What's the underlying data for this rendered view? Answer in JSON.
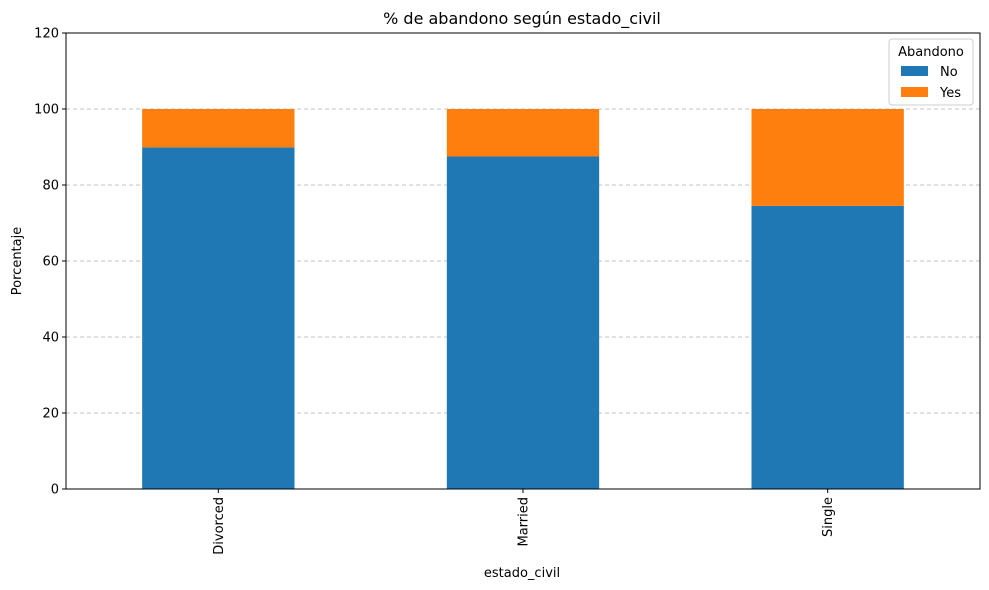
{
  "chart_data": {
    "type": "bar",
    "stacked": true,
    "title": "% de abandono según estado_civil",
    "xlabel": "estado_civil",
    "ylabel": "Porcentaje",
    "categories": [
      "Divorced",
      "Married",
      "Single"
    ],
    "series": [
      {
        "name": "No",
        "values": [
          89.9,
          87.5,
          74.5
        ],
        "color": "#1f77b4"
      },
      {
        "name": "Yes",
        "values": [
          10.1,
          12.5,
          25.5
        ],
        "color": "#ff7f0e"
      }
    ],
    "ylim": [
      0,
      120
    ],
    "yticks": [
      0,
      20,
      40,
      60,
      80,
      100,
      120
    ],
    "grid": "y-dashed",
    "legend": {
      "title": "Abandono",
      "position": "top-right"
    }
  }
}
